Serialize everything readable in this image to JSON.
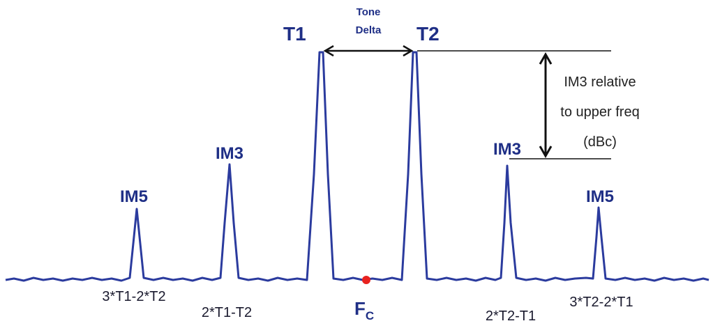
{
  "labels": {
    "t1": "T1",
    "t2": "T2",
    "tone_delta_line1": "Tone",
    "tone_delta_line2": "Delta",
    "im3_left": "IM3",
    "im3_right": "IM3",
    "im5_left": "IM5",
    "im5_right": "IM5",
    "im3_relative_line1": "IM3 relative",
    "im3_relative_line2": "to upper freq",
    "im3_relative_line3": "(dBc)",
    "fc_main": "F",
    "fc_sub": "C"
  },
  "formulas": {
    "im5_left": "3*T1-2*T2",
    "im3_left": "2*T1-T2",
    "im3_right": "2*T2-T1",
    "im5_right": "3*T2-2*T1"
  },
  "colors": {
    "trace": "#2b3b9e",
    "label": "#1f2f86",
    "center_marker": "#e8221f",
    "annotation": "#111111"
  }
}
